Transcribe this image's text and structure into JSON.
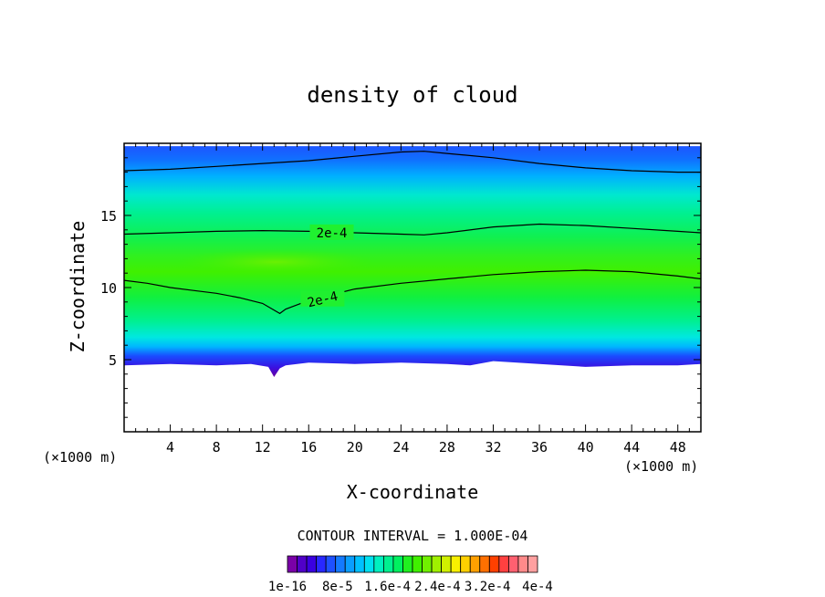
{
  "chart_data": {
    "type": "heatmap",
    "title": "density of cloud",
    "xlabel": "X-coordinate",
    "ylabel": "Z-coordinate",
    "x_unit": "(×1000 m)",
    "x_unit_right": "(×1000 m)",
    "xlim": [
      0,
      50
    ],
    "ylim": [
      0,
      20
    ],
    "x_ticks": [
      4,
      8,
      12,
      16,
      20,
      24,
      28,
      32,
      36,
      40,
      44,
      48
    ],
    "y_ticks": [
      5,
      10,
      15
    ],
    "contour_interval_text": "CONTOUR INTERVAL = 1.000E-04",
    "colorbar_labels": [
      "1e-16",
      "8e-5",
      "1.6e-4",
      "2.4e-4",
      "3.2e-4",
      "4e-4"
    ],
    "colorbar_colors": [
      "#7a00a8",
      "#5000c8",
      "#3a00e0",
      "#2828ff",
      "#1e50ff",
      "#147aff",
      "#0a9eff",
      "#00c0ff",
      "#00e0f0",
      "#00f0c0",
      "#00f090",
      "#00f060",
      "#20f020",
      "#40f000",
      "#70f000",
      "#a0f000",
      "#d0f000",
      "#f8f000",
      "#ffd000",
      "#ffa000",
      "#ff7000",
      "#ff4000",
      "#ff4040",
      "#ff6070",
      "#ff8a8a",
      "#ffa0a0"
    ],
    "contour_labels": [
      {
        "text": "2e-4",
        "x": 18,
        "z": 13.8
      },
      {
        "text": "2e-4",
        "x": 17.2,
        "z": 9.2
      }
    ],
    "contour_lines": [
      {
        "name": "upper",
        "x": [
          0,
          4,
          8,
          12,
          16,
          20,
          24,
          26,
          28,
          32,
          36,
          40,
          44,
          48,
          50
        ],
        "z": [
          18.1,
          18.2,
          18.4,
          18.6,
          18.8,
          19.1,
          19.4,
          19.45,
          19.3,
          19.0,
          18.6,
          18.3,
          18.1,
          18.0,
          18.0
        ]
      },
      {
        "name": "mid",
        "x": [
          0,
          4,
          8,
          12,
          16,
          20,
          24,
          26,
          28,
          32,
          36,
          40,
          44,
          48,
          50
        ],
        "z": [
          13.7,
          13.8,
          13.9,
          13.95,
          13.9,
          13.8,
          13.7,
          13.65,
          13.8,
          14.2,
          14.4,
          14.3,
          14.1,
          13.9,
          13.8
        ]
      },
      {
        "name": "lower",
        "x": [
          0,
          2,
          4,
          6,
          8,
          10,
          12,
          13.5,
          14,
          16,
          20,
          24,
          28,
          32,
          36,
          40,
          44,
          48,
          50
        ],
        "z": [
          10.5,
          10.3,
          10.0,
          9.8,
          9.6,
          9.3,
          8.9,
          8.2,
          8.5,
          9.1,
          9.9,
          10.3,
          10.6,
          10.9,
          11.1,
          11.2,
          11.1,
          10.8,
          10.6
        ]
      }
    ],
    "cloud_base": {
      "x": [
        0,
        4,
        8,
        11,
        12.5,
        13,
        13.5,
        14,
        16,
        20,
        24,
        28,
        30,
        32,
        36,
        40,
        44,
        48,
        50
      ],
      "z": [
        4.6,
        4.7,
        4.6,
        4.7,
        4.5,
        3.8,
        4.4,
        4.6,
        4.8,
        4.7,
        4.8,
        4.7,
        4.6,
        4.9,
        4.7,
        4.5,
        4.6,
        4.6,
        4.7
      ]
    },
    "cloud_top": {
      "x": [
        0,
        8,
        16,
        24,
        26,
        28,
        36,
        44,
        50
      ],
      "z": [
        19.8,
        19.8,
        19.8,
        19.8,
        19.8,
        19.8,
        19.8,
        19.8,
        19.8
      ]
    },
    "grid": false,
    "legend": "bottom"
  }
}
